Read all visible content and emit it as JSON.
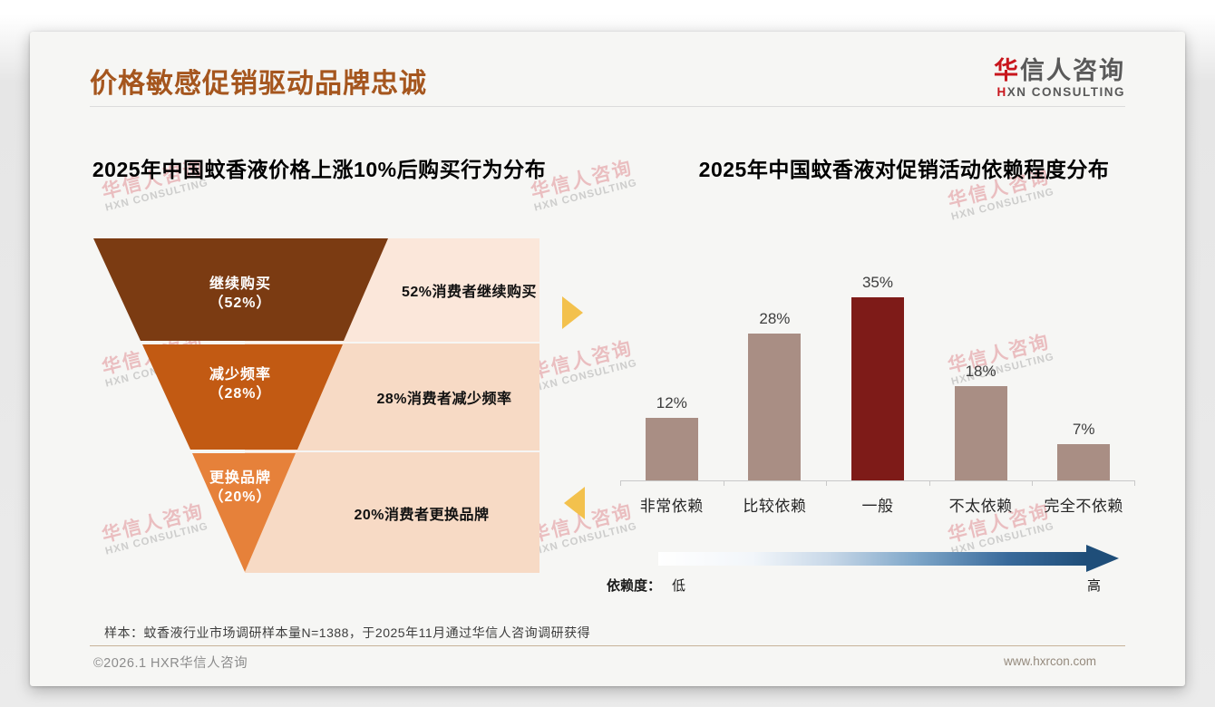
{
  "page": {
    "title": "价格敏感促销驱动品牌忠诚",
    "logo": {
      "brand_cn_accent": "华",
      "brand_cn_rest": "信人咨询",
      "brand_en_accent": "H",
      "brand_en_rest": "XN CONSULTING"
    },
    "watermark": {
      "line1": "华信人咨询",
      "line2": "HXN CONSULTING"
    },
    "sample_note": "样本：蚊香液行业市场调研样本量N=1388，于2025年11月通过华信人咨询调研获得",
    "footer": {
      "copyright": "©2026.1 HXR华信人咨询",
      "website": "www.hxrcon.com"
    },
    "colors": {
      "title": "#a5561e",
      "logo_red": "#c8161d",
      "bar_default": "#a98e84",
      "bar_highlight": "#7e1b18",
      "arrow_gold": "#f3c14d",
      "gradient_blue_end": "#1f4e79"
    }
  },
  "chart_data": [
    {
      "type": "funnel",
      "title": "2025年中国蚊香液价格上涨10%后购买行为分布",
      "steps": [
        {
          "label": "继续购买",
          "value": 52,
          "value_label": "（52%）",
          "annotation": "52%消费者继续购买",
          "color": "#7b3b12"
        },
        {
          "label": "减少频率",
          "value": 28,
          "value_label": "（28%）",
          "annotation": "28%消费者减少频率",
          "color": "#c25a13"
        },
        {
          "label": "更换品牌",
          "value": 20,
          "value_label": "（20%）",
          "annotation": "20%消费者更换品牌",
          "color": "#e6813a"
        }
      ]
    },
    {
      "type": "bar",
      "title": "2025年中国蚊香液对促销活动依赖程度分布",
      "categories": [
        "非常依赖",
        "比较依赖",
        "一般",
        "不太依赖",
        "完全不依赖"
      ],
      "values": [
        12,
        28,
        35,
        18,
        7
      ],
      "value_labels": [
        "12%",
        "28%",
        "35%",
        "18%",
        "7%"
      ],
      "unit": "%",
      "ylim": [
        0,
        38
      ],
      "grid": false,
      "legend": "none",
      "highlight_index": 2,
      "footnote_axis": {
        "label": "依赖度：",
        "left_end": "低",
        "right_end": "高"
      }
    }
  ]
}
